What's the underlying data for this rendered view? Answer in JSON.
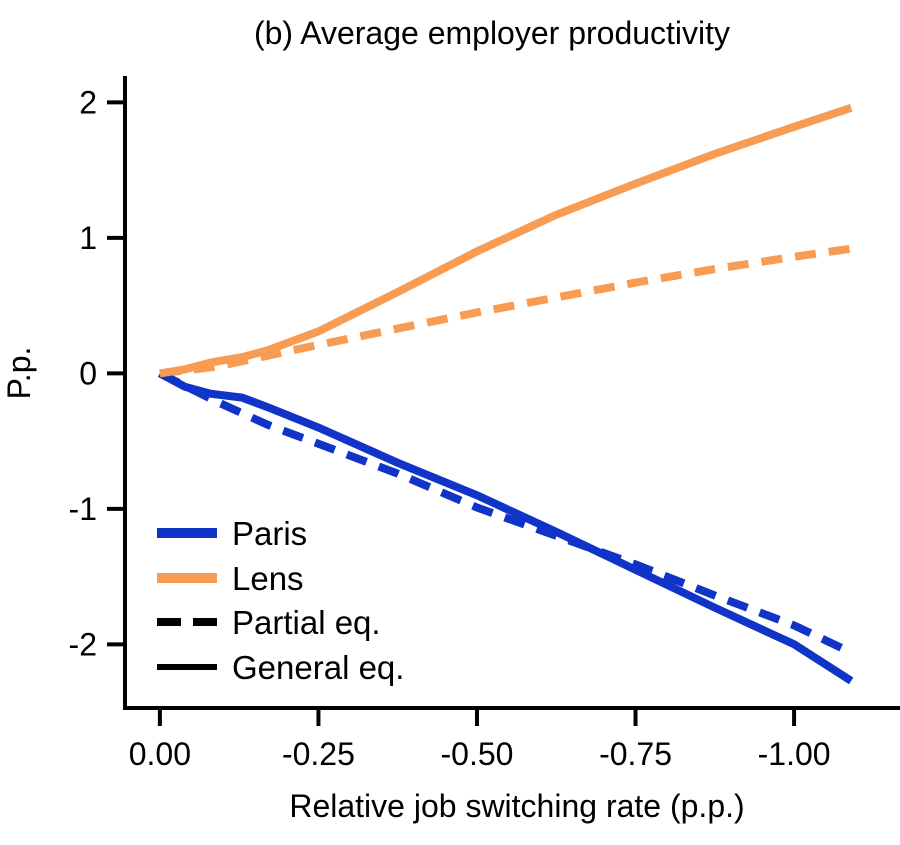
{
  "chart_data": {
    "type": "line",
    "title": "(b) Average employer productivity",
    "xlabel": "Relative job switching rate (p.p.)",
    "ylabel": "P.p.",
    "grid": false,
    "legend_position": "lower-left",
    "xlim": [
      0.055,
      -1.167
    ],
    "ylim": [
      -2.47,
      2.18
    ],
    "x_ticks": [
      0,
      -0.25,
      -0.5,
      -0.75,
      -1.0
    ],
    "x_tick_labels": [
      "0.00",
      "-0.25",
      "-0.50",
      "-0.75",
      "-1.00"
    ],
    "y_ticks": [
      2,
      1,
      0,
      -1,
      -2
    ],
    "y_tick_labels": [
      "2",
      "1",
      "0",
      "-1",
      "-2"
    ],
    "colors": {
      "paris_blue": "#1134c8",
      "lens_orange": "#f89c53",
      "axis_black": "#000000"
    },
    "series": [
      {
        "name": "Paris — Partial eq.",
        "city": "Paris",
        "equilibrium": "partial",
        "style": "dashed",
        "color": "#1134c8",
        "x": [
          0,
          -0.09,
          -0.17,
          -0.25,
          -0.375,
          -0.5,
          -0.625,
          -0.75,
          -0.875,
          -1.0,
          -1.09
        ],
        "y": [
          0,
          -0.21,
          -0.38,
          -0.52,
          -0.74,
          -0.99,
          -1.2,
          -1.41,
          -1.64,
          -1.86,
          -2.06
        ]
      },
      {
        "name": "Lens — Partial eq.",
        "city": "Lens",
        "equilibrium": "partial",
        "style": "dashed",
        "color": "#f89c53",
        "x": [
          0,
          -0.09,
          -0.17,
          -0.25,
          -0.375,
          -0.5,
          -0.625,
          -0.75,
          -0.875,
          -1.0,
          -1.09
        ],
        "y": [
          0,
          0.05,
          0.13,
          0.21,
          0.33,
          0.45,
          0.56,
          0.67,
          0.77,
          0.86,
          0.92
        ]
      },
      {
        "name": "Paris — General eq.",
        "city": "Paris",
        "equilibrium": "general",
        "style": "solid",
        "color": "#1134c8",
        "x": [
          0,
          -0.04,
          -0.08,
          -0.13,
          -0.17,
          -0.25,
          -0.375,
          -0.5,
          -0.625,
          -0.75,
          -0.875,
          -1.0,
          -1.09
        ],
        "y": [
          0,
          -0.1,
          -0.15,
          -0.18,
          -0.25,
          -0.4,
          -0.66,
          -0.9,
          -1.17,
          -1.45,
          -1.73,
          -2.0,
          -2.27
        ]
      },
      {
        "name": "Lens — General eq.",
        "city": "Lens",
        "equilibrium": "general",
        "style": "solid",
        "color": "#f89c53",
        "x": [
          0,
          -0.04,
          -0.08,
          -0.13,
          -0.17,
          -0.25,
          -0.375,
          -0.5,
          -0.625,
          -0.75,
          -0.875,
          -1.0,
          -1.09
        ],
        "y": [
          0,
          0.03,
          0.08,
          0.12,
          0.17,
          0.31,
          0.6,
          0.9,
          1.17,
          1.4,
          1.62,
          1.82,
          1.96
        ]
      }
    ]
  },
  "legend": {
    "items": [
      {
        "label": "Paris",
        "color": "#1134c8",
        "style": "solid"
      },
      {
        "label": "Lens",
        "color": "#f89c53",
        "style": "solid"
      },
      {
        "label": "Partial eq.",
        "color": "#000000",
        "style": "dashed"
      },
      {
        "label": "General eq.",
        "color": "#000000",
        "style": "solid"
      }
    ]
  }
}
